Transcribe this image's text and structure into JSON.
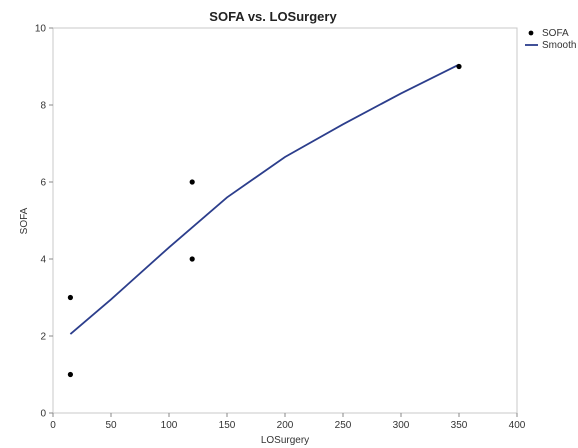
{
  "chart_data": {
    "type": "scatter",
    "title": "SOFA vs. LOSurgery",
    "xlabel": "LOSurgery",
    "ylabel": "SOFA",
    "xlim": [
      0,
      400
    ],
    "ylim": [
      0,
      10
    ],
    "xticks": [
      0,
      50,
      100,
      150,
      200,
      250,
      300,
      350,
      400
    ],
    "yticks": [
      0,
      2,
      4,
      6,
      8,
      10
    ],
    "grid": false,
    "legend_position": "top-right",
    "series": [
      {
        "name": "SOFA",
        "kind": "points",
        "color": "#000000",
        "points": [
          {
            "x": 15,
            "y": 3
          },
          {
            "x": 15,
            "y": 1
          },
          {
            "x": 120,
            "y": 6
          },
          {
            "x": 120,
            "y": 4
          },
          {
            "x": 350,
            "y": 9
          }
        ]
      },
      {
        "name": "Smooth",
        "kind": "line",
        "color": "#2c3e8c",
        "points": [
          {
            "x": 15,
            "y": 2.05
          },
          {
            "x": 50,
            "y": 2.95
          },
          {
            "x": 100,
            "y": 4.3
          },
          {
            "x": 150,
            "y": 5.6
          },
          {
            "x": 200,
            "y": 6.65
          },
          {
            "x": 250,
            "y": 7.5
          },
          {
            "x": 300,
            "y": 8.3
          },
          {
            "x": 350,
            "y": 9.05
          }
        ]
      }
    ]
  }
}
